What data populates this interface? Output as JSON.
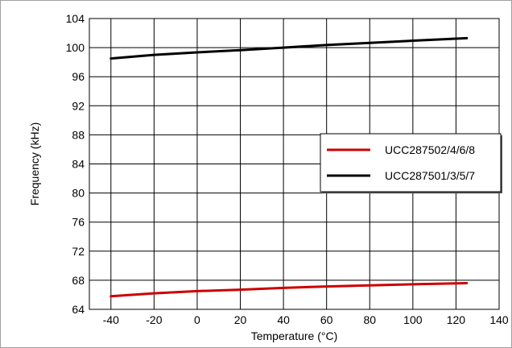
{
  "chart_data": {
    "type": "line",
    "title": "",
    "xlabel": "Temperature (°C)",
    "ylabel": "Frequency (kHz)",
    "xlim": [
      -50,
      140
    ],
    "ylim": [
      64,
      104
    ],
    "x_ticks": [
      -40,
      -20,
      0,
      20,
      40,
      60,
      80,
      100,
      120,
      140
    ],
    "y_ticks": [
      64,
      68,
      72,
      76,
      80,
      84,
      88,
      92,
      96,
      100,
      104
    ],
    "grid": true,
    "legend_position": "right",
    "series": [
      {
        "name": "UCC287502/4/6/8",
        "color": "#cc0000",
        "x": [
          -40,
          -20,
          0,
          20,
          40,
          60,
          80,
          100,
          125
        ],
        "y": [
          65.8,
          66.2,
          66.5,
          66.7,
          66.95,
          67.15,
          67.3,
          67.45,
          67.6
        ]
      },
      {
        "name": "UCC287501/3/5/7",
        "color": "#000000",
        "x": [
          -40,
          -20,
          0,
          20,
          40,
          60,
          80,
          100,
          125
        ],
        "y": [
          98.5,
          99.0,
          99.35,
          99.65,
          100.0,
          100.35,
          100.65,
          100.95,
          101.3
        ]
      }
    ]
  }
}
